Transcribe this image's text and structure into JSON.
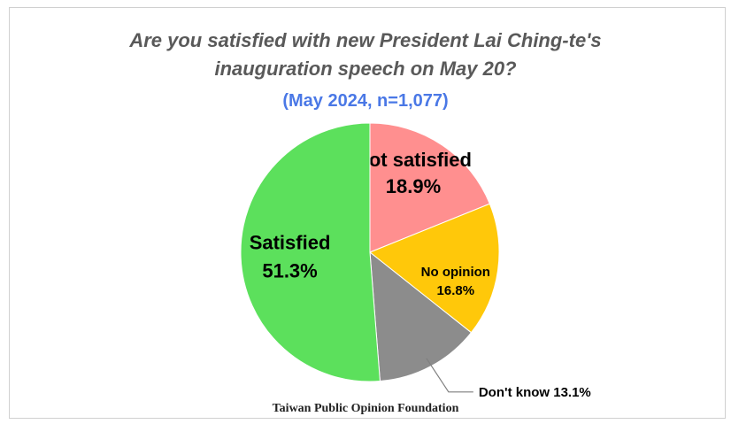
{
  "chart_data": {
    "type": "pie",
    "title_line1": "Are you satisfied with new President Lai Ching-te's",
    "title_line2": "inauguration speech on May 20?",
    "subtitle": "(May 2024, n=1,077)",
    "source": "Taiwan Public Opinion Foundation",
    "slices": [
      {
        "label": "Not satisfied",
        "value": 18.9,
        "value_text": "18.9%",
        "color": "#ff8f8f"
      },
      {
        "label": "No opinion",
        "value": 16.8,
        "value_text": "16.8%",
        "color": "#ffc80a"
      },
      {
        "label": "Don't know",
        "value": 13.1,
        "value_text": "13.1%",
        "color": "#8c8c8c"
      },
      {
        "label": "Satisfied",
        "value": 51.3,
        "value_text": "51.3%",
        "color": "#5ce05c"
      }
    ],
    "start_angle": "12 o'clock",
    "direction": "clockwise"
  }
}
